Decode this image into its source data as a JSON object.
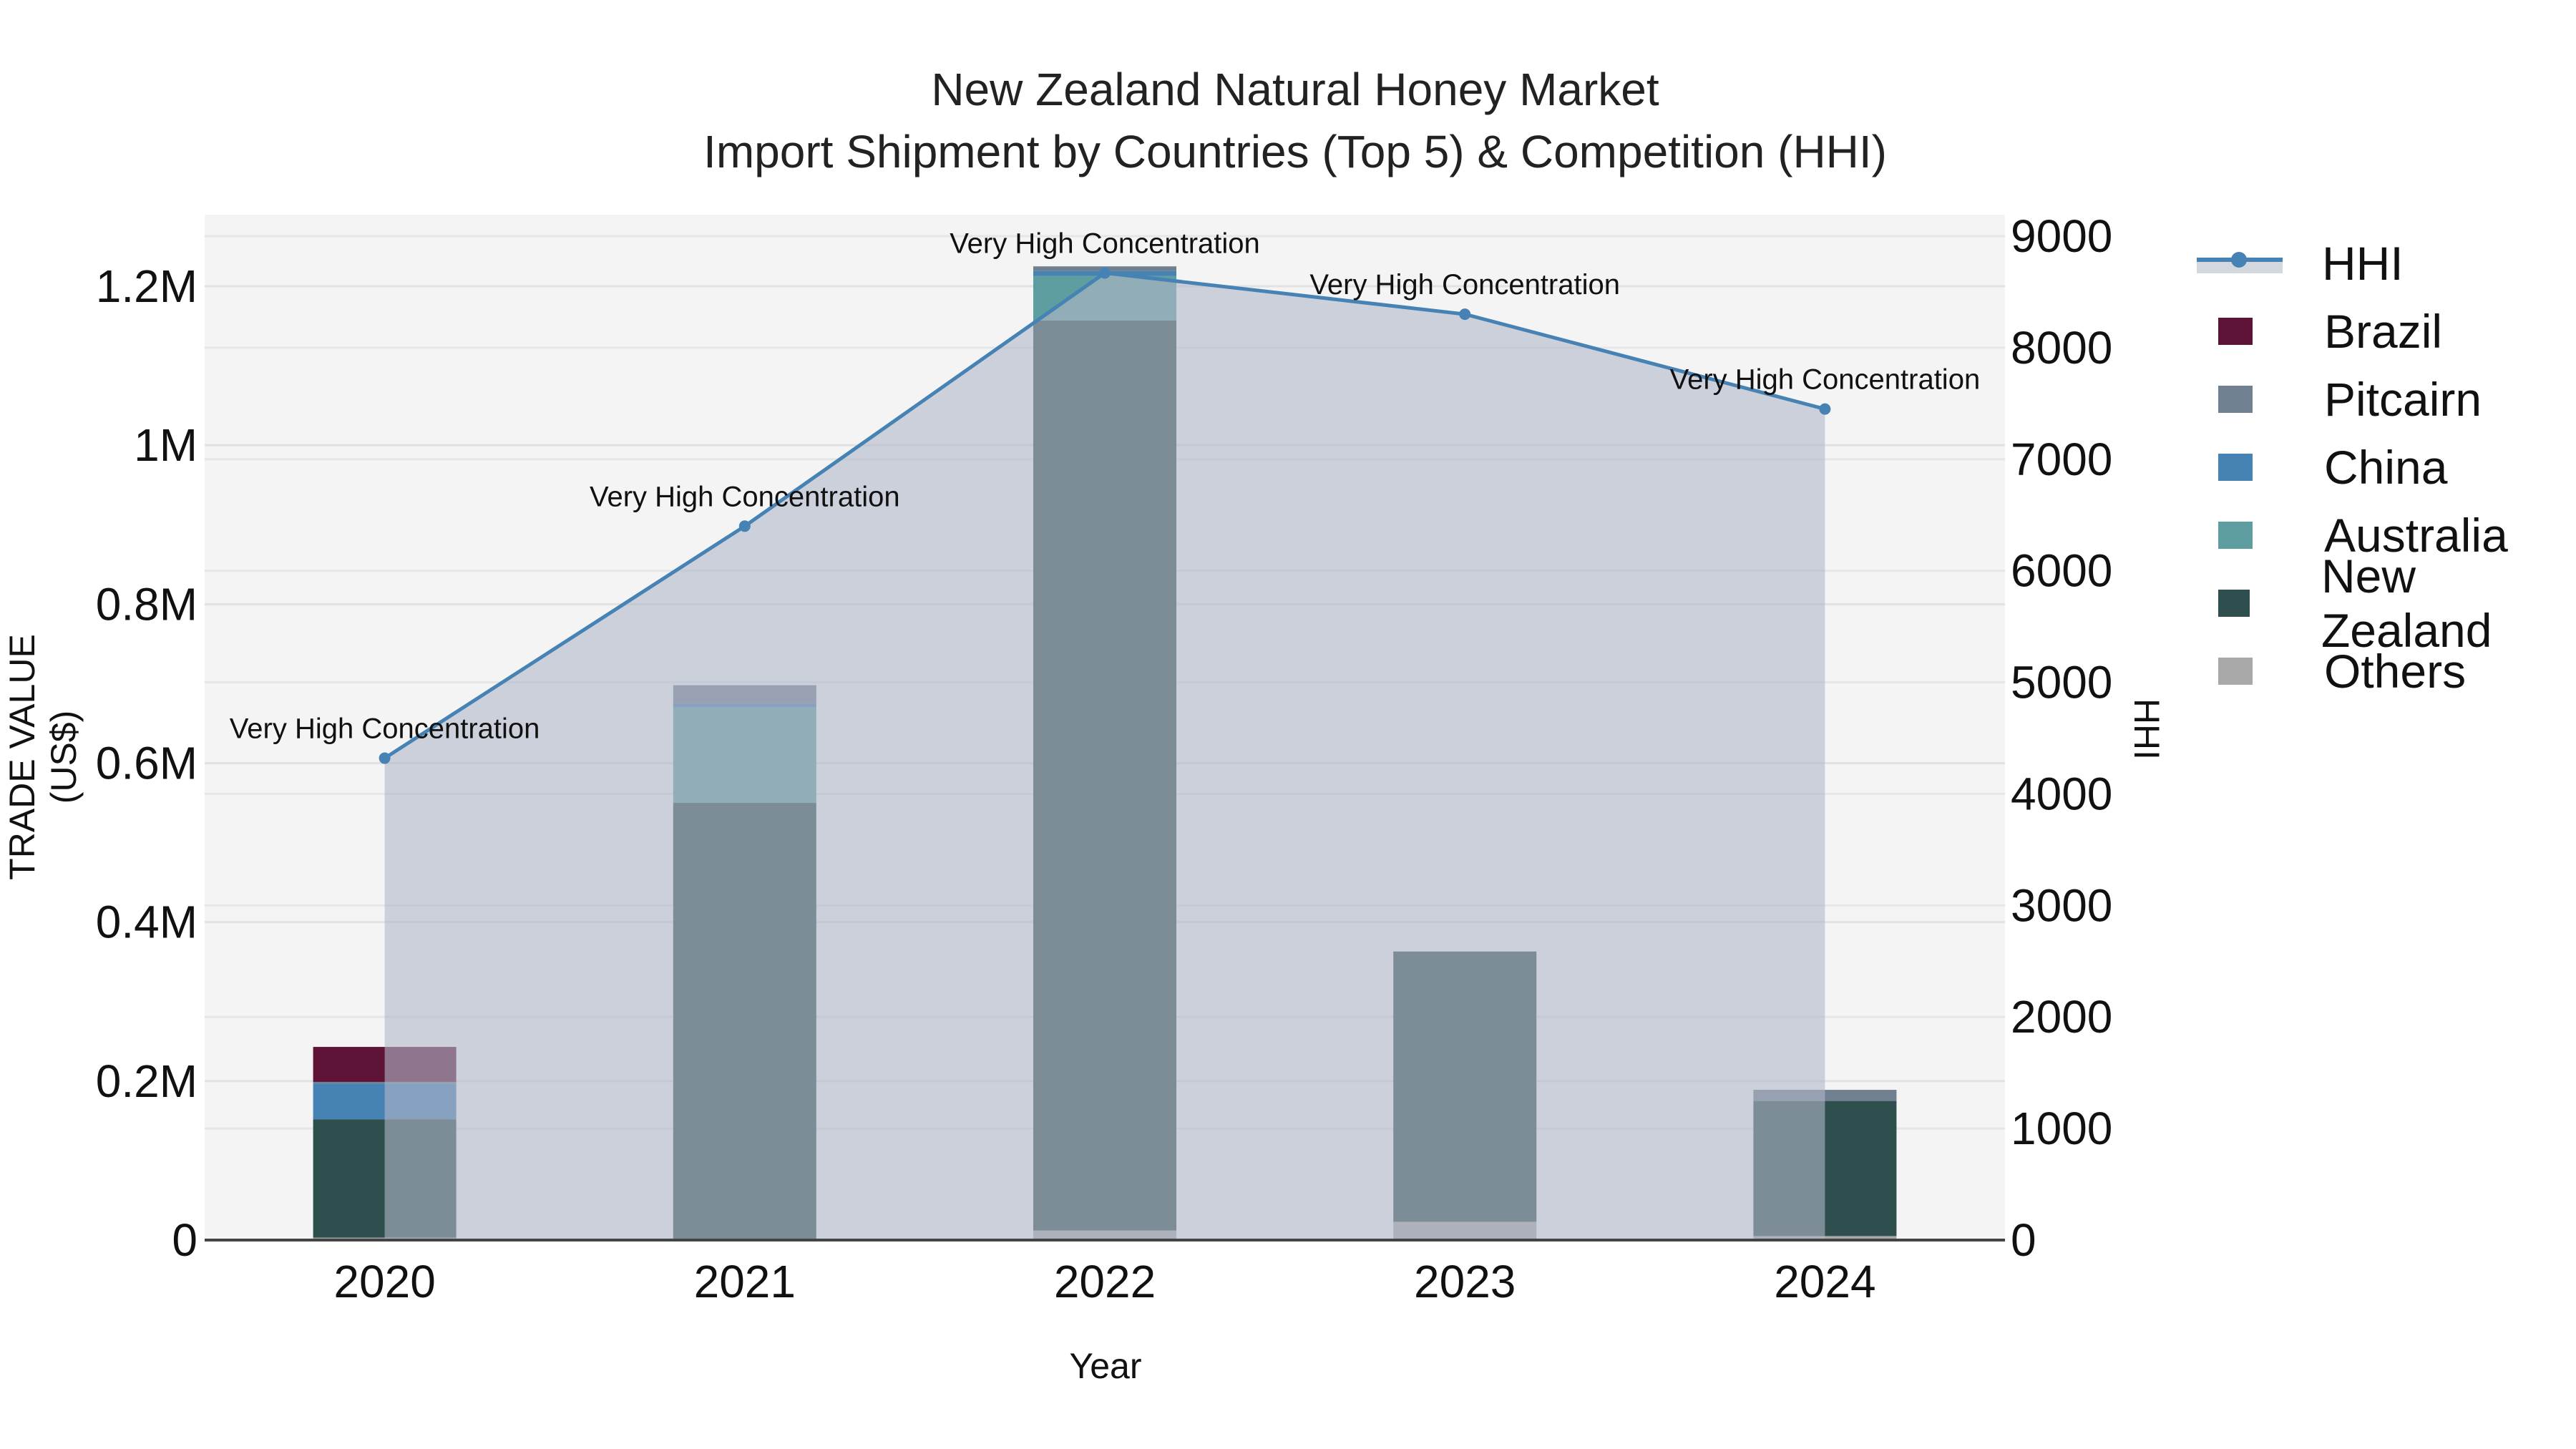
{
  "title_line1": "New Zealand Natural Honey Market",
  "title_line2": "Import Shipment by Countries (Top 5) & Competition (HHI)",
  "xlabel": "Year",
  "ylabel": "TRADE VALUE (US$)",
  "y2label": "HHI",
  "legend": [
    {
      "label": "HHI",
      "color": "#4682b4",
      "kind": "line"
    },
    {
      "label": "Brazil",
      "color": "#5e1336"
    },
    {
      "label": "Pitcairn",
      "color": "#708090"
    },
    {
      "label": "China",
      "color": "#4682b4"
    },
    {
      "label": "Australia",
      "color": "#5f9ea0"
    },
    {
      "label": "New Zealand",
      "color": "#2f4f4f"
    },
    {
      "label": "Others",
      "color": "#a9a9a9"
    }
  ],
  "chart_data": {
    "type": "bar",
    "stacked": true,
    "title": "New Zealand Natural Honey Market — Import Shipment by Countries (Top 5) & Competition (HHI)",
    "xlabel": "Year",
    "ylabel": "TRADE VALUE (US$)",
    "y2label": "HHI",
    "categories": [
      "2020",
      "2021",
      "2022",
      "2023",
      "2024"
    ],
    "ylim": [
      0,
      1280000
    ],
    "yticks": [
      "0",
      "0.2M",
      "0.4M",
      "0.6M",
      "0.8M",
      "1M",
      "1.2M"
    ],
    "y2lim": [
      0,
      9150
    ],
    "y2ticks": [
      "0",
      "1000",
      "2000",
      "3000",
      "4000",
      "5000",
      "6000",
      "7000",
      "8000",
      "9000"
    ],
    "series": [
      {
        "name": "Others",
        "color": "#a9a9a9",
        "values": [
          3000,
          1000,
          12000,
          23000,
          5000
        ]
      },
      {
        "name": "New Zealand",
        "color": "#2f4f4f",
        "values": [
          149000,
          549000,
          1145000,
          340000,
          170000
        ]
      },
      {
        "name": "Australia",
        "color": "#5f9ea0",
        "values": [
          0,
          120000,
          56000,
          0,
          0
        ]
      },
      {
        "name": "China",
        "color": "#4682b4",
        "values": [
          45000,
          5000,
          6000,
          0,
          0
        ]
      },
      {
        "name": "Pitcairn",
        "color": "#708090",
        "values": [
          2000,
          23000,
          6000,
          0,
          14000
        ]
      },
      {
        "name": "Brazil",
        "color": "#5e1336",
        "values": [
          44000,
          0,
          0,
          0,
          0
        ]
      }
    ],
    "line_series": {
      "name": "HHI",
      "axis": "y2",
      "color": "#4682b4",
      "values": [
        4320,
        6400,
        8670,
        8300,
        7450
      ],
      "annotations": [
        "Very High Concentration",
        "Very High Concentration",
        "Very High Concentration",
        "Very High Concentration",
        "Very High Concentration"
      ]
    },
    "grid": true,
    "legend_position": "right"
  }
}
